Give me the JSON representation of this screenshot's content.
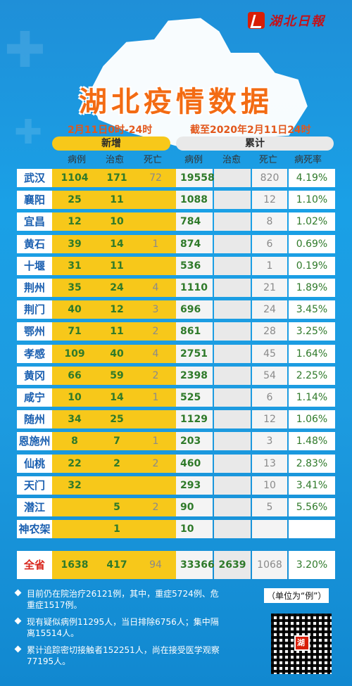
{
  "logo": {
    "text": "湖北日報"
  },
  "title": "湖北疫情数据",
  "subtitle_left": "2月11日0时-24时",
  "subtitle_right": "截至2020年2月11日24时",
  "headers": {
    "new": "新增",
    "accum": "累计",
    "cols": [
      "病例",
      "治愈",
      "死亡",
      "病例",
      "治愈",
      "死亡",
      "病死率"
    ]
  },
  "rows": [
    {
      "city": "武汉",
      "n_case": "1104",
      "n_cure": "171",
      "n_death": "72",
      "a_case": "19558",
      "a_cure": "",
      "a_death": "820",
      "a_rate": "4.19%"
    },
    {
      "city": "襄阳",
      "n_case": "25",
      "n_cure": "11",
      "n_death": "",
      "a_case": "1088",
      "a_cure": "",
      "a_death": "12",
      "a_rate": "1.10%"
    },
    {
      "city": "宜昌",
      "n_case": "12",
      "n_cure": "10",
      "n_death": "",
      "a_case": "784",
      "a_cure": "",
      "a_death": "8",
      "a_rate": "1.02%"
    },
    {
      "city": "黄石",
      "n_case": "39",
      "n_cure": "14",
      "n_death": "1",
      "a_case": "874",
      "a_cure": "",
      "a_death": "6",
      "a_rate": "0.69%"
    },
    {
      "city": "十堰",
      "n_case": "31",
      "n_cure": "11",
      "n_death": "",
      "a_case": "536",
      "a_cure": "",
      "a_death": "1",
      "a_rate": "0.19%"
    },
    {
      "city": "荆州",
      "n_case": "35",
      "n_cure": "24",
      "n_death": "4",
      "a_case": "1110",
      "a_cure": "",
      "a_death": "21",
      "a_rate": "1.89%"
    },
    {
      "city": "荆门",
      "n_case": "40",
      "n_cure": "12",
      "n_death": "3",
      "a_case": "696",
      "a_cure": "",
      "a_death": "24",
      "a_rate": "3.45%"
    },
    {
      "city": "鄂州",
      "n_case": "71",
      "n_cure": "11",
      "n_death": "2",
      "a_case": "861",
      "a_cure": "",
      "a_death": "28",
      "a_rate": "3.25%"
    },
    {
      "city": "孝感",
      "n_case": "109",
      "n_cure": "40",
      "n_death": "4",
      "a_case": "2751",
      "a_cure": "",
      "a_death": "45",
      "a_rate": "1.64%"
    },
    {
      "city": "黄冈",
      "n_case": "66",
      "n_cure": "59",
      "n_death": "2",
      "a_case": "2398",
      "a_cure": "",
      "a_death": "54",
      "a_rate": "2.25%"
    },
    {
      "city": "咸宁",
      "n_case": "10",
      "n_cure": "14",
      "n_death": "1",
      "a_case": "525",
      "a_cure": "",
      "a_death": "6",
      "a_rate": "1.14%"
    },
    {
      "city": "随州",
      "n_case": "34",
      "n_cure": "25",
      "n_death": "",
      "a_case": "1129",
      "a_cure": "",
      "a_death": "12",
      "a_rate": "1.06%"
    },
    {
      "city": "恩施州",
      "n_case": "8",
      "n_cure": "7",
      "n_death": "1",
      "a_case": "203",
      "a_cure": "",
      "a_death": "3",
      "a_rate": "1.48%"
    },
    {
      "city": "仙桃",
      "n_case": "22",
      "n_cure": "2",
      "n_death": "2",
      "a_case": "460",
      "a_cure": "",
      "a_death": "13",
      "a_rate": "2.83%"
    },
    {
      "city": "天门",
      "n_case": "32",
      "n_cure": "",
      "n_death": "",
      "a_case": "293",
      "a_cure": "",
      "a_death": "10",
      "a_rate": "3.41%"
    },
    {
      "city": "潜江",
      "n_case": "",
      "n_cure": "5",
      "n_death": "2",
      "a_case": "90",
      "a_cure": "",
      "a_death": "5",
      "a_rate": "5.56%"
    },
    {
      "city": "神农架",
      "n_case": "",
      "n_cure": "1",
      "n_death": "",
      "a_case": "10",
      "a_cure": "",
      "a_death": "",
      "a_rate": ""
    }
  ],
  "total": {
    "city": "全省",
    "n_case": "1638",
    "n_cure": "417",
    "n_death": "94",
    "a_case": "33366",
    "a_cure": "2639",
    "a_death": "1068",
    "a_rate": "3.20%"
  },
  "notes": [
    "目前仍在院治疗26121例，其中，重症5724例、危重症1517例。",
    "现有疑似病例11295人，当日排除6756人；集中隔离15514人。",
    "累计追踪密切接触者152251人，尚在接受医学观察77195人。"
  ],
  "unit": "（单位为“例”）",
  "qr_badge": "湖",
  "colors": {
    "title": "#f36b13",
    "new_bg": "#f7c81a",
    "city_text": "#1a5fb0",
    "background": "#1d9be0"
  }
}
